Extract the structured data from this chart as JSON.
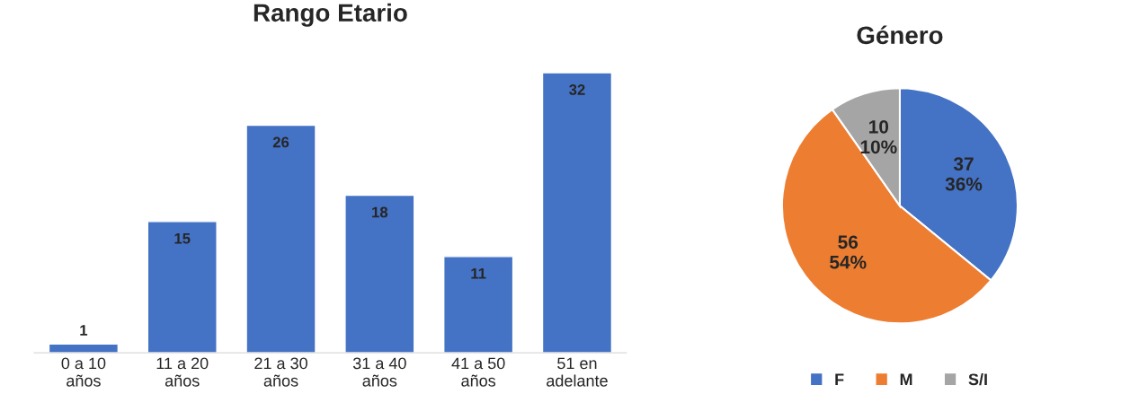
{
  "chart_data": [
    {
      "type": "bar",
      "title": "Rango Etario",
      "categories": [
        "0 a 10\naños",
        "11 a 20\naños",
        "21 a 30\naños",
        "31 a 40\naños",
        "41 a 50\naños",
        "51 en\nadelante"
      ],
      "values": [
        1,
        15,
        26,
        18,
        11,
        32
      ],
      "color": "#4472c4",
      "data_labels": true
    },
    {
      "type": "pie",
      "title": "Género",
      "categories": [
        "F",
        "M",
        "S/I"
      ],
      "values": [
        37,
        56,
        10
      ],
      "colors": [
        "#4472c4",
        "#ed7d31",
        "#a5a5a5"
      ],
      "value_labels": [
        "37\n36%",
        "56\n54%",
        "10\n10%"
      ],
      "legend": "bottom"
    }
  ]
}
